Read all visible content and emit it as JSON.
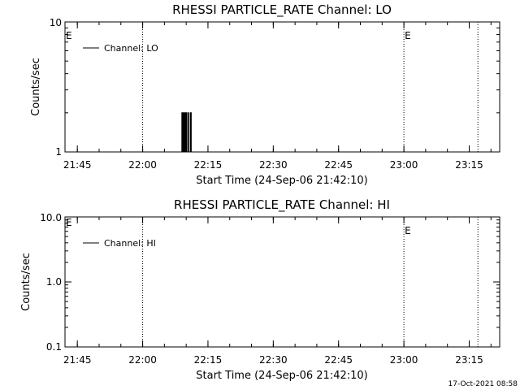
{
  "footer_timestamp": "17-Oct-2021 08:58",
  "chart_data": [
    {
      "type": "line",
      "title": "RHESSI PARTICLE_RATE Channel: LO",
      "xlabel": "Start Time (24-Sep-06 21:42:10)",
      "ylabel": "Counts/sec",
      "y_scale": "log",
      "ylim": [
        1,
        10
      ],
      "y_tick_labels": [
        "1",
        "10"
      ],
      "xlim": [
        "21:42:10",
        "23:22:00"
      ],
      "x_tick_labels": [
        "21:45",
        "22:00",
        "22:15",
        "22:30",
        "22:45",
        "23:00",
        "23:15"
      ],
      "legend": {
        "position": "top-left",
        "entries": [
          "Channel: LO"
        ]
      },
      "event_markers": [
        {
          "time": "22:00",
          "label": ""
        },
        {
          "time": "23:00",
          "label": "E"
        },
        {
          "time": "23:17",
          "label": ""
        }
      ],
      "left_marker_label": "E",
      "series": [
        {
          "name": "Channel: LO",
          "x": [
            "22:08:50",
            "22:09:00",
            "22:09:10",
            "22:09:20",
            "22:09:30",
            "22:09:40",
            "22:09:50",
            "22:10:00",
            "22:10:10",
            "22:10:20",
            "22:10:30",
            "22:10:40",
            "22:10:50",
            "22:11:00",
            "22:11:10",
            "22:11:20"
          ],
          "values": [
            1,
            2,
            1,
            2,
            1,
            2,
            1,
            2,
            1,
            1,
            2,
            1,
            1,
            2,
            1,
            1
          ]
        }
      ]
    },
    {
      "type": "line",
      "title": "RHESSI PARTICLE_RATE Channel: HI",
      "xlabel": "Start Time (24-Sep-06 21:42:10)",
      "ylabel": "Counts/sec",
      "y_scale": "log",
      "ylim": [
        0.1,
        10
      ],
      "y_tick_labels": [
        "0.1",
        "1.0",
        "10.0"
      ],
      "xlim": [
        "21:42:10",
        "23:22:00"
      ],
      "x_tick_labels": [
        "21:45",
        "22:00",
        "22:15",
        "22:30",
        "22:45",
        "23:00",
        "23:15"
      ],
      "legend": {
        "position": "top-left",
        "entries": [
          "Channel: HI"
        ]
      },
      "event_markers": [
        {
          "time": "22:00",
          "label": ""
        },
        {
          "time": "23:00",
          "label": "E"
        },
        {
          "time": "23:17",
          "label": ""
        }
      ],
      "left_marker_label": "E",
      "series": [
        {
          "name": "Channel: HI",
          "x": [],
          "values": []
        }
      ]
    }
  ]
}
